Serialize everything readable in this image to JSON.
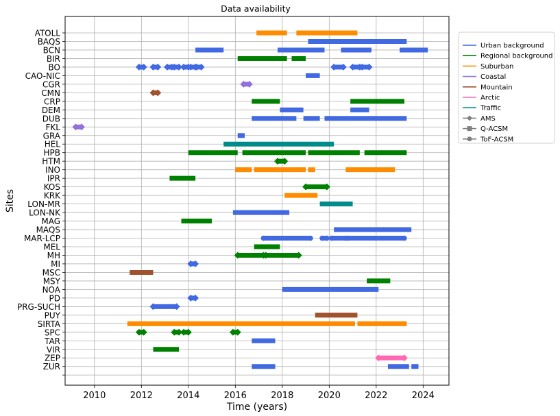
{
  "chart_data": {
    "type": "timeline",
    "title": "Data availability",
    "xlabel": "Time (years)",
    "ylabel": "Sites",
    "xlim": [
      2008.75,
      2025.1
    ],
    "xticks": [
      2010,
      2012,
      2014,
      2016,
      2018,
      2020,
      2022,
      2024
    ],
    "grid": true,
    "legend_position": "outside-right",
    "colors": {
      "urban": "#4169e1",
      "regional": "#008000",
      "suburban": "#ff8c00",
      "coastal": "#9370db",
      "mountain": "#a0522d",
      "arctic": "#ff69b4",
      "traffic": "#008b8b"
    },
    "legend": [
      {
        "label": "Urban background",
        "type": "urban"
      },
      {
        "label": "Regional background",
        "type": "regional"
      },
      {
        "label": "Suburban",
        "type": "suburban"
      },
      {
        "label": "Coastal",
        "type": "coastal"
      },
      {
        "label": "Mountain",
        "type": "mountain"
      },
      {
        "label": "Arctic",
        "type": "arctic"
      },
      {
        "label": "Traffic",
        "type": "traffic"
      },
      {
        "label": "AMS",
        "marker": "diamond"
      },
      {
        "label": "Q-ACSM",
        "marker": "square"
      },
      {
        "label": "ToF-ACSM",
        "marker": "circle"
      }
    ],
    "sites": [
      {
        "name": "ATOLL",
        "type": "suburban",
        "segments": [
          [
            2016.9,
            2018.2
          ],
          [
            2018.6,
            2021.2
          ]
        ]
      },
      {
        "name": "BAQS",
        "type": "urban",
        "segments": [
          [
            2019.1,
            2023.3
          ]
        ]
      },
      {
        "name": "BCN",
        "type": "urban",
        "segments": [
          [
            2014.3,
            2015.5
          ],
          [
            2017.8,
            2019.8
          ],
          [
            2020.5,
            2021.8
          ],
          [
            2023.0,
            2024.2
          ]
        ]
      },
      {
        "name": "BIR",
        "type": "regional",
        "segments": [
          [
            2016.1,
            2018.2
          ],
          [
            2018.4,
            2019.0
          ]
        ]
      },
      {
        "name": "BO",
        "type": "urban",
        "segments": [
          [
            2011.9,
            2012.1
          ],
          [
            2012.5,
            2012.7
          ],
          [
            2013.1,
            2013.3
          ],
          [
            2013.4,
            2013.6
          ],
          [
            2013.8,
            2014.0
          ],
          [
            2014.1,
            2014.3
          ],
          [
            2014.35,
            2014.55
          ],
          [
            2020.2,
            2020.6
          ],
          [
            2021.0,
            2021.3
          ],
          [
            2021.4,
            2021.7
          ]
        ],
        "marker": "diamond"
      },
      {
        "name": "CAO-NIC",
        "type": "urban",
        "segments": [
          [
            2019.0,
            2019.6
          ]
        ]
      },
      {
        "name": "CGR",
        "type": "coastal",
        "segments": [
          [
            2016.35,
            2016.6
          ]
        ],
        "marker": "diamond"
      },
      {
        "name": "CMN",
        "type": "mountain",
        "segments": [
          [
            2012.5,
            2012.7
          ]
        ],
        "marker": "diamond"
      },
      {
        "name": "CRP",
        "type": "regional",
        "segments": [
          [
            2016.7,
            2017.9
          ],
          [
            2020.9,
            2023.2
          ]
        ]
      },
      {
        "name": "DEM",
        "type": "urban",
        "segments": [
          [
            2017.9,
            2018.9
          ],
          [
            2020.9,
            2021.7
          ]
        ]
      },
      {
        "name": "DUB",
        "type": "urban",
        "segments": [
          [
            2016.7,
            2018.6
          ],
          [
            2018.9,
            2019.6
          ],
          [
            2019.8,
            2023.3
          ]
        ]
      },
      {
        "name": "FKL",
        "type": "coastal",
        "segments": [
          [
            2009.2,
            2009.45
          ]
        ],
        "marker": "diamond"
      },
      {
        "name": "GRA",
        "type": "urban",
        "segments": [
          [
            2016.1,
            2016.4
          ]
        ]
      },
      {
        "name": "HEL",
        "type": "traffic",
        "segments": [
          [
            2015.5,
            2020.2
          ]
        ]
      },
      {
        "name": "HPB",
        "type": "regional",
        "segments": [
          [
            2014.0,
            2016.1
          ],
          [
            2016.3,
            2019.0
          ],
          [
            2019.1,
            2021.3
          ],
          [
            2021.5,
            2023.3
          ]
        ]
      },
      {
        "name": "HTM",
        "type": "regional",
        "segments": [
          [
            2017.8,
            2018.1
          ]
        ],
        "marker": "diamond"
      },
      {
        "name": "INO",
        "type": "suburban",
        "segments": [
          [
            2016.0,
            2016.7
          ],
          [
            2016.8,
            2019.0
          ],
          [
            2019.1,
            2019.4
          ],
          [
            2020.7,
            2022.8
          ]
        ]
      },
      {
        "name": "IPR",
        "type": "regional",
        "segments": [
          [
            2013.2,
            2014.3
          ]
        ]
      },
      {
        "name": "KOS",
        "type": "regional",
        "segments": [
          [
            2019.0,
            2019.9
          ]
        ],
        "marker": "diamond"
      },
      {
        "name": "KRK",
        "type": "suburban",
        "segments": [
          [
            2018.1,
            2019.5
          ]
        ]
      },
      {
        "name": "LON-MR",
        "type": "traffic",
        "segments": [
          [
            2019.6,
            2021.0
          ]
        ]
      },
      {
        "name": "LON-NK",
        "type": "urban",
        "segments": [
          [
            2015.9,
            2018.3
          ]
        ]
      },
      {
        "name": "MAG",
        "type": "regional",
        "segments": [
          [
            2013.7,
            2015.0
          ]
        ]
      },
      {
        "name": "MAQS",
        "type": "urban",
        "segments": [
          [
            2020.2,
            2023.5
          ]
        ]
      },
      {
        "name": "MAR-LCP",
        "type": "urban",
        "segments": [
          [
            2017.2,
            2019.2
          ],
          [
            2019.7,
            2019.9
          ],
          [
            2020.1,
            2020.7
          ],
          [
            2020.8,
            2023.2
          ]
        ],
        "marker": "circle"
      },
      {
        "name": "MEL",
        "type": "regional",
        "segments": [
          [
            2016.8,
            2017.9
          ]
        ]
      },
      {
        "name": "MH",
        "type": "regional",
        "segments": [
          [
            2016.1,
            2017.2
          ],
          [
            2017.3,
            2018.7
          ]
        ],
        "marker": "diamond"
      },
      {
        "name": "MI",
        "type": "urban",
        "segments": [
          [
            2014.1,
            2014.3
          ]
        ],
        "marker": "diamond"
      },
      {
        "name": "MSC",
        "type": "mountain",
        "segments": [
          [
            2011.5,
            2012.5
          ]
        ]
      },
      {
        "name": "MSY",
        "type": "regional",
        "segments": [
          [
            2021.6,
            2022.6
          ]
        ]
      },
      {
        "name": "NOA",
        "type": "urban",
        "segments": [
          [
            2018.0,
            2022.1
          ]
        ]
      },
      {
        "name": "PD",
        "type": "urban",
        "segments": [
          [
            2014.1,
            2014.3
          ]
        ],
        "marker": "diamond"
      },
      {
        "name": "PRG-SUCH",
        "type": "urban",
        "segments": [
          [
            2012.5,
            2013.5
          ]
        ],
        "marker": "diamond"
      },
      {
        "name": "PUY",
        "type": "mountain",
        "segments": [
          [
            2019.4,
            2021.2
          ]
        ]
      },
      {
        "name": "SIRTA",
        "type": "suburban",
        "segments": [
          [
            2011.4,
            2021.1
          ],
          [
            2021.2,
            2023.3
          ]
        ]
      },
      {
        "name": "SPC",
        "type": "regional",
        "segments": [
          [
            2011.9,
            2012.1
          ],
          [
            2013.4,
            2013.6
          ],
          [
            2013.8,
            2014.0
          ],
          [
            2015.9,
            2016.1
          ]
        ],
        "marker": "diamond"
      },
      {
        "name": "TAR",
        "type": "urban",
        "segments": [
          [
            2016.7,
            2017.7
          ]
        ]
      },
      {
        "name": "VIR",
        "type": "regional",
        "segments": [
          [
            2012.5,
            2013.6
          ]
        ]
      },
      {
        "name": "ZEP",
        "type": "arctic",
        "segments": [
          [
            2022.1,
            2023.2
          ]
        ],
        "marker": "diamond"
      },
      {
        "name": "ZUR",
        "type": "urban",
        "segments": [
          [
            2016.7,
            2017.7
          ],
          [
            2022.5,
            2023.4
          ],
          [
            2023.5,
            2023.8
          ]
        ]
      }
    ]
  }
}
